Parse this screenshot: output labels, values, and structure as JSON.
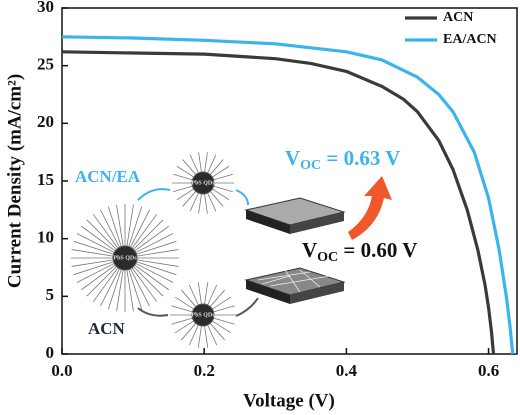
{
  "chart_data": {
    "type": "line",
    "xlabel": "Voltage (V)",
    "ylabel": "Current Density (mA/cm²)",
    "xlim": [
      0,
      0.64
    ],
    "ylim": [
      0,
      30
    ],
    "xticks": [
      {
        "value": 0,
        "label": "0.0"
      },
      0.2,
      0.4,
      0.6
    ],
    "yticks": [
      0,
      5,
      10,
      15,
      20,
      25,
      30
    ],
    "legend": "upper right",
    "series": [
      {
        "name": "ACN",
        "color": "#3a3a3a",
        "x": [
          0,
          0.1,
          0.2,
          0.3,
          0.35,
          0.4,
          0.45,
          0.48,
          0.5,
          0.53,
          0.55,
          0.57,
          0.585,
          0.595,
          0.6,
          0.604,
          0.607
        ],
        "values": [
          26.2,
          26.1,
          26.0,
          25.6,
          25.2,
          24.5,
          23.2,
          22.1,
          21.0,
          18.5,
          16.0,
          12.5,
          9.0,
          6.0,
          4.0,
          2.0,
          0
        ]
      },
      {
        "name": "EA/ACN",
        "color": "#3bb4ec",
        "x": [
          0,
          0.1,
          0.2,
          0.3,
          0.4,
          0.45,
          0.5,
          0.53,
          0.55,
          0.58,
          0.6,
          0.615,
          0.625,
          0.63,
          0.634
        ],
        "values": [
          27.5,
          27.4,
          27.2,
          26.9,
          26.2,
          25.5,
          24.0,
          22.5,
          21.0,
          17.5,
          13.5,
          9.0,
          5.0,
          2.5,
          0
        ]
      }
    ],
    "annotations": [
      {
        "main": "V",
        "sub": "OC",
        "tail": " = 0.63 V",
        "color": "#3bb4ec"
      },
      {
        "main": "V",
        "sub": "OC",
        "tail": " = 0.60 V",
        "color": "#111111"
      }
    ],
    "inset": {
      "label_top": "ACN/EA",
      "label_bottom": "ACN",
      "qd_label": "PbS QDs"
    }
  }
}
